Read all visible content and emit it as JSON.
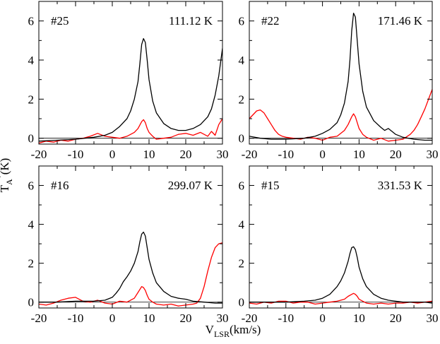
{
  "figure": {
    "xlabel_main": "V",
    "xlabel_sub": "LSR",
    "xlabel_unit": "(km/s)",
    "ylabel_main": "T",
    "ylabel_sub": "A",
    "ylabel_sup": "*",
    "ylabel_unit": "(K)"
  },
  "chart_data": [
    {
      "type": "line",
      "id": "#25",
      "temperature": "111.12 K",
      "xlim": [
        -20,
        30
      ],
      "ylim": [
        -0.3,
        7
      ],
      "xticks": [
        -20,
        -10,
        0,
        10,
        20,
        30
      ],
      "yticks": [
        0,
        2,
        4,
        6
      ],
      "series": [
        {
          "name": "black",
          "color": "#000000",
          "x": [
            -20,
            -15,
            -10,
            -5,
            -2,
            0,
            2,
            4,
            5,
            6,
            7,
            7.5,
            8,
            8.5,
            9,
            9.5,
            10,
            11,
            12,
            14,
            16,
            18,
            20,
            22,
            24,
            26,
            27,
            28,
            29,
            29.5,
            30
          ],
          "y": [
            -0.15,
            -0.1,
            -0.05,
            0.05,
            0.15,
            0.3,
            0.6,
            1.0,
            1.4,
            2.0,
            2.9,
            3.8,
            4.8,
            5.1,
            4.9,
            4.0,
            3.0,
            1.9,
            1.3,
            0.75,
            0.5,
            0.4,
            0.4,
            0.5,
            0.7,
            1.1,
            1.5,
            2.2,
            3.2,
            3.9,
            4.6
          ]
        },
        {
          "name": "red",
          "color": "#ff0000",
          "x": [
            -20,
            -18,
            -16,
            -14,
            -12,
            -10,
            -8,
            -6,
            -4,
            -2,
            0,
            2,
            4,
            6,
            7,
            8,
            8.5,
            9,
            9.5,
            10,
            11,
            12,
            14,
            16,
            18,
            20,
            22,
            24,
            25,
            26,
            27,
            28,
            29,
            30
          ],
          "y": [
            -0.25,
            -0.15,
            -0.2,
            -0.1,
            -0.15,
            -0.05,
            0.0,
            0.1,
            0.25,
            0.1,
            0.05,
            0.0,
            0.1,
            0.3,
            0.5,
            0.85,
            0.95,
            0.8,
            0.5,
            0.3,
            0.1,
            -0.05,
            0.0,
            0.05,
            0.2,
            0.25,
            0.15,
            0.3,
            0.2,
            0.1,
            0.35,
            0.15,
            0.7,
            1.0
          ]
        }
      ]
    },
    {
      "type": "line",
      "id": "#22",
      "temperature": "171.46 K",
      "xlim": [
        -20,
        30
      ],
      "ylim": [
        -0.3,
        7
      ],
      "xticks": [
        -20,
        -10,
        0,
        10,
        20,
        30
      ],
      "yticks": [
        0,
        2,
        4,
        6
      ],
      "series": [
        {
          "name": "black",
          "color": "#000000",
          "x": [
            -20,
            -17,
            -14,
            -10,
            -5,
            -2,
            0,
            2,
            4,
            5,
            6,
            7,
            7.5,
            8,
            8.5,
            9,
            9.5,
            10,
            11,
            12,
            14,
            16,
            17,
            18,
            19,
            20,
            22,
            25,
            28,
            30
          ],
          "y": [
            0.1,
            0.0,
            -0.05,
            -0.05,
            0.0,
            0.1,
            0.25,
            0.45,
            0.8,
            1.2,
            1.8,
            2.9,
            4.0,
            5.5,
            6.4,
            6.2,
            5.0,
            3.8,
            2.4,
            1.6,
            0.9,
            0.55,
            0.4,
            0.5,
            0.35,
            0.2,
            0.05,
            -0.05,
            -0.1,
            -0.1
          ]
        },
        {
          "name": "red",
          "color": "#ff0000",
          "x": [
            -20,
            -19,
            -18,
            -17,
            -16,
            -15,
            -14,
            -13,
            -12,
            -11,
            -10,
            -8,
            -6,
            -4,
            -2,
            0,
            2,
            4,
            6,
            7,
            8,
            8.5,
            9,
            9.5,
            10,
            11,
            12,
            14,
            16,
            18,
            20,
            22,
            24,
            25,
            26,
            27,
            28,
            29,
            30
          ],
          "y": [
            1.0,
            1.2,
            1.4,
            1.45,
            1.3,
            1.0,
            0.7,
            0.4,
            0.2,
            0.1,
            0.05,
            0.0,
            -0.05,
            0.05,
            0.0,
            -0.1,
            0.05,
            0.1,
            0.4,
            0.7,
            1.1,
            1.25,
            1.1,
            0.8,
            0.5,
            0.2,
            0.05,
            -0.1,
            0.0,
            -0.15,
            -0.1,
            -0.05,
            0.2,
            0.4,
            0.7,
            1.1,
            1.5,
            2.0,
            2.5
          ]
        }
      ]
    },
    {
      "type": "line",
      "id": "#16",
      "temperature": "299.07 K",
      "xlim": [
        -20,
        30
      ],
      "ylim": [
        -0.3,
        7
      ],
      "xticks": [
        -20,
        -10,
        0,
        10,
        20,
        30
      ],
      "yticks": [
        0,
        2,
        4,
        6
      ],
      "series": [
        {
          "name": "black",
          "color": "#000000",
          "x": [
            -20,
            -15,
            -10,
            -5,
            -2,
            0,
            1,
            2,
            3,
            4,
            5,
            6,
            7,
            7.5,
            8,
            8.5,
            9,
            9.5,
            10,
            11,
            12,
            14,
            16,
            18,
            20,
            22,
            25,
            28,
            30
          ],
          "y": [
            0.0,
            0.0,
            0.05,
            0.05,
            0.1,
            0.25,
            0.45,
            0.7,
            1.05,
            1.3,
            1.6,
            2.0,
            2.6,
            3.1,
            3.5,
            3.6,
            3.4,
            2.8,
            2.2,
            1.5,
            1.0,
            0.55,
            0.3,
            0.2,
            0.15,
            0.05,
            0.0,
            -0.05,
            -0.05
          ]
        },
        {
          "name": "red",
          "color": "#ff0000",
          "x": [
            -20,
            -18,
            -16,
            -14,
            -12,
            -10,
            -8,
            -6,
            -4,
            -2,
            0,
            2,
            4,
            6,
            7,
            8,
            8.5,
            9,
            9.5,
            10,
            11,
            12,
            14,
            16,
            18,
            20,
            22,
            23,
            24,
            25,
            26,
            27,
            28,
            29,
            30
          ],
          "y": [
            -0.1,
            -0.15,
            -0.05,
            0.1,
            0.2,
            0.25,
            0.05,
            0.0,
            0.1,
            -0.05,
            -0.1,
            0.05,
            0.0,
            0.2,
            0.5,
            0.8,
            0.75,
            0.6,
            0.35,
            0.15,
            0.0,
            -0.1,
            -0.15,
            -0.1,
            -0.2,
            -0.15,
            -0.1,
            -0.05,
            0.2,
            0.8,
            1.6,
            2.3,
            2.8,
            3.0,
            3.05
          ]
        }
      ]
    },
    {
      "type": "line",
      "id": "#15",
      "temperature": "331.53 K",
      "xlim": [
        -20,
        30
      ],
      "ylim": [
        -0.3,
        7
      ],
      "xticks": [
        -20,
        -10,
        0,
        10,
        20,
        30
      ],
      "yticks": [
        0,
        2,
        4,
        6
      ],
      "series": [
        {
          "name": "black",
          "color": "#000000",
          "x": [
            -20,
            -15,
            -10,
            -5,
            -2,
            0,
            2,
            4,
            5,
            6,
            7,
            7.5,
            8,
            8.5,
            9,
            9.5,
            10,
            11,
            12,
            14,
            16,
            18,
            20,
            22,
            25,
            28,
            30
          ],
          "y": [
            0.0,
            0.0,
            0.0,
            0.05,
            0.1,
            0.2,
            0.4,
            0.8,
            1.1,
            1.5,
            2.1,
            2.5,
            2.8,
            2.85,
            2.7,
            2.3,
            1.8,
            1.2,
            0.8,
            0.4,
            0.2,
            0.1,
            0.05,
            0.0,
            0.0,
            0.0,
            -0.05
          ]
        },
        {
          "name": "red",
          "color": "#ff0000",
          "x": [
            -20,
            -18,
            -16,
            -14,
            -12,
            -10,
            -8,
            -6,
            -4,
            -2,
            0,
            2,
            4,
            6,
            7,
            8,
            8.5,
            9,
            9.5,
            10,
            11,
            12,
            14,
            16,
            18,
            20,
            22,
            24,
            26,
            28,
            30
          ],
          "y": [
            -0.05,
            -0.1,
            0.0,
            -0.05,
            0.05,
            0.05,
            -0.05,
            0.0,
            0.0,
            -0.1,
            -0.05,
            0.0,
            0.05,
            0.15,
            0.3,
            0.4,
            0.45,
            0.4,
            0.3,
            0.15,
            0.05,
            -0.05,
            -0.1,
            -0.05,
            -0.1,
            -0.05,
            -0.05,
            0.0,
            -0.05,
            0.0,
            0.05
          ]
        }
      ]
    }
  ]
}
